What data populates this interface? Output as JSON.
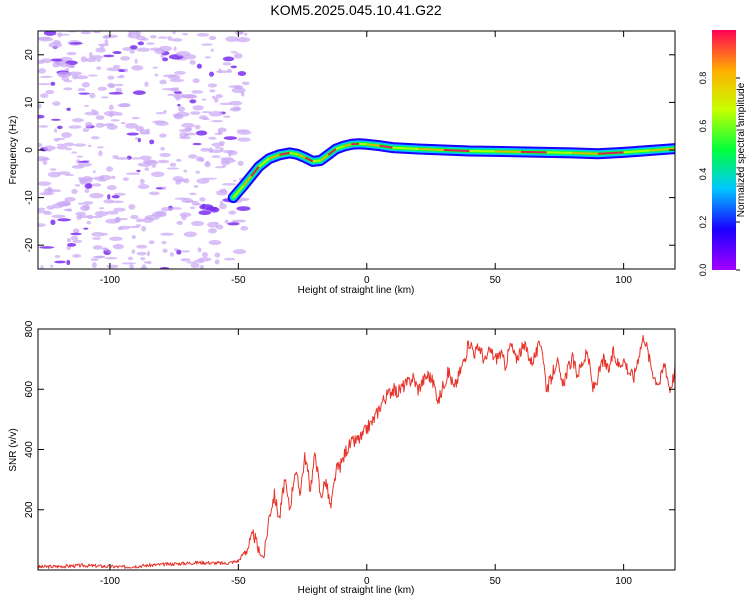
{
  "title": "KOM5.2025.045.10.41.G22",
  "colors": {
    "snr_line": "#e8332a",
    "axis": "#000000",
    "noise": "#c9a6f5",
    "noise_dark": "#7b2ff0"
  },
  "chart_data": [
    {
      "type": "heatmap",
      "name": "spectrogram",
      "xlabel": "Height of straight line (km)",
      "ylabel": "Frequency (Hz)",
      "xlim": [
        -128,
        120
      ],
      "ylim": [
        -25,
        25
      ],
      "xticks": [
        -100,
        -50,
        0,
        50,
        100
      ],
      "xtick_labels": [
        "-100",
        "-50",
        "0",
        "50",
        "100"
      ],
      "yticks": [
        -20,
        -10,
        0,
        10,
        20
      ],
      "ytick_labels": [
        "-20",
        "-10",
        "0",
        "10",
        "20"
      ],
      "signal_onset_km": -52,
      "trace": {
        "x": [
          -52,
          -48,
          -45,
          -42,
          -38,
          -34,
          -30,
          -27,
          -24,
          -21,
          -18,
          -15,
          -12,
          -9,
          -6,
          -3,
          0,
          5,
          10,
          20,
          30,
          40,
          50,
          60,
          70,
          80,
          90,
          100,
          110,
          120
        ],
        "y": [
          -10,
          -7.5,
          -5.5,
          -3.5,
          -1.8,
          -1.0,
          -0.6,
          -0.9,
          -1.6,
          -2.4,
          -2.2,
          -1.0,
          0.2,
          0.8,
          1.2,
          1.3,
          1.2,
          0.9,
          0.5,
          0.2,
          0.0,
          -0.2,
          -0.3,
          -0.4,
          -0.5,
          -0.6,
          -0.8,
          -0.5,
          -0.1,
          0.3
        ]
      },
      "colorbar": {
        "label": "Normalized spectral amplitude",
        "ticks": [
          0.0,
          0.2,
          0.4,
          0.6,
          0.8
        ],
        "tick_labels": [
          "0.0",
          "0.2",
          "0.4",
          "0.6",
          "0.8"
        ],
        "stops": [
          "#a600ff",
          "#1a00ff",
          "#00c8ff",
          "#00ff3c",
          "#c8ff00",
          "#ffae00",
          "#ff0055"
        ]
      }
    },
    {
      "type": "line",
      "name": "snr",
      "xlabel": "Height of straight line (km)",
      "ylabel": "SNR (v/v)",
      "xlim": [
        -128,
        120
      ],
      "ylim": [
        0,
        800
      ],
      "xticks": [
        -100,
        -50,
        0,
        50,
        100
      ],
      "xtick_labels": [
        "-100",
        "-50",
        "0",
        "50",
        "100"
      ],
      "yticks": [
        200,
        400,
        600,
        800
      ],
      "ytick_labels": [
        "200",
        "400",
        "600",
        "800"
      ],
      "series": [
        {
          "name": "SNR",
          "x": [
            -128,
            -110,
            -95,
            -80,
            -65,
            -55,
            -50,
            -46,
            -44,
            -42,
            -40,
            -38,
            -36,
            -34,
            -32,
            -30,
            -28,
            -26,
            -24,
            -22,
            -20,
            -18,
            -16,
            -14,
            -12,
            -10,
            -8,
            -6,
            -4,
            -2,
            0,
            2,
            4,
            6,
            8,
            10,
            12,
            14,
            16,
            18,
            20,
            22,
            24,
            26,
            28,
            30,
            32,
            34,
            36,
            38,
            40,
            42,
            44,
            46,
            48,
            50,
            52,
            54,
            56,
            58,
            60,
            62,
            64,
            66,
            68,
            70,
            72,
            74,
            76,
            78,
            80,
            82,
            84,
            86,
            88,
            90,
            92,
            94,
            96,
            98,
            100,
            102,
            104,
            106,
            108,
            110,
            112,
            114,
            116,
            118,
            120
          ],
          "y": [
            10,
            15,
            10,
            18,
            25,
            22,
            30,
            80,
            120,
            60,
            40,
            180,
            250,
            170,
            300,
            200,
            330,
            260,
            380,
            270,
            390,
            240,
            300,
            200,
            330,
            350,
            400,
            420,
            430,
            440,
            470,
            490,
            520,
            560,
            580,
            600,
            590,
            610,
            620,
            640,
            600,
            630,
            650,
            620,
            560,
            620,
            660,
            600,
            650,
            700,
            760,
            720,
            740,
            690,
            730,
            700,
            720,
            680,
            750,
            700,
            730,
            740,
            690,
            720,
            760,
            600,
            640,
            700,
            610,
            660,
            700,
            650,
            690,
            720,
            600,
            640,
            700,
            660,
            720,
            680,
            700,
            660,
            640,
            720,
            780,
            700,
            640,
            620,
            690,
            600,
            660
          ]
        }
      ]
    }
  ]
}
